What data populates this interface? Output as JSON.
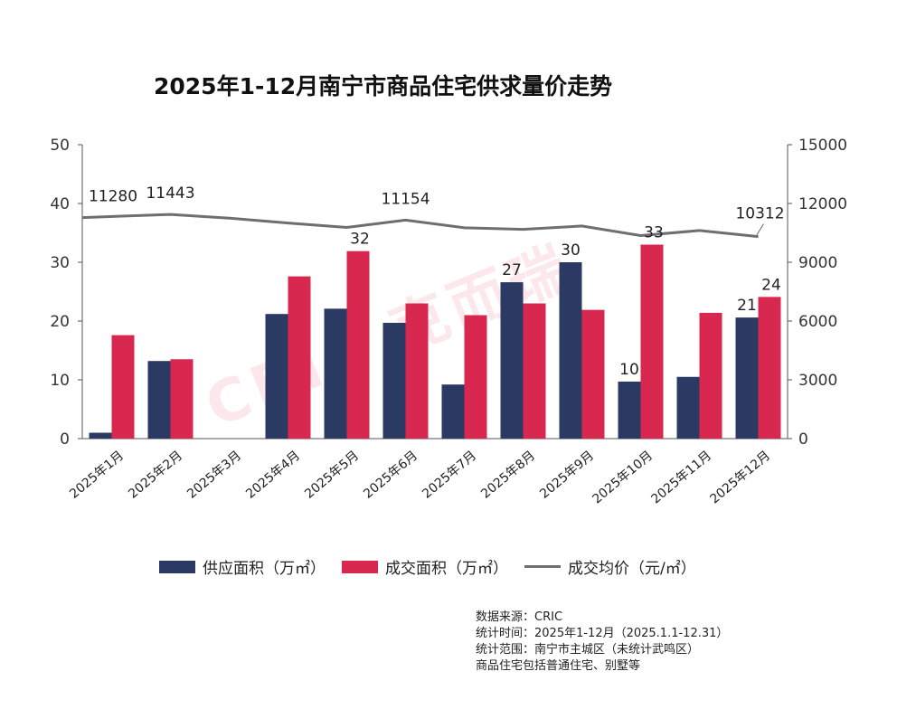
{
  "colors": {
    "supply": "#2a3a63",
    "deal": "#d9284f",
    "price": "#6e6e6e",
    "axis": "#555555",
    "watermark": "#e1112b"
  },
  "watermark": "CRIC 克而瑞",
  "chart_data": {
    "type": "bar",
    "title": "2025年1-12月南宁市商品住宅供求量价走势",
    "categories": [
      "2025年1月",
      "2025年2月",
      "2025年3月",
      "2025年4月",
      "2025年5月",
      "2025年6月",
      "2025年7月",
      "2025年8月",
      "2025年9月",
      "2025年10月",
      "2025年11月",
      "2025年12月"
    ],
    "series": [
      {
        "name": "供应面积（万㎡）",
        "kind": "bar",
        "axis": "left",
        "values": [
          1,
          13.2,
          0,
          21.2,
          22.1,
          19.7,
          9.2,
          26.6,
          30,
          9.7,
          10.5,
          20.6
        ],
        "labels": [
          "",
          "",
          "",
          "",
          "",
          "",
          "",
          "27",
          "30",
          "10",
          "",
          "21"
        ]
      },
      {
        "name": "成交面积（万㎡）",
        "kind": "bar",
        "axis": "left",
        "values": [
          17.6,
          13.5,
          0,
          27.6,
          31.9,
          23,
          21,
          23,
          21.9,
          33,
          21.4,
          24.1
        ],
        "labels": [
          "",
          "",
          "",
          "",
          "32",
          "",
          "",
          "",
          "",
          "33",
          "",
          "24"
        ]
      },
      {
        "name": "成交均价（元/㎡）",
        "kind": "line",
        "axis": "right",
        "values": [
          11280,
          11443,
          11250,
          11000,
          10780,
          11154,
          10760,
          10680,
          10850,
          10360,
          10620,
          10312
        ],
        "labels": [
          "11280",
          "11443",
          "",
          "",
          "",
          "11154",
          "",
          "",
          "",
          "",
          "",
          "10312"
        ]
      }
    ],
    "y_left": {
      "min": 0,
      "max": 50,
      "ticks": [
        "0",
        "10",
        "20",
        "30",
        "40",
        "50"
      ]
    },
    "y_right": {
      "min": 0,
      "max": 15000,
      "ticks": [
        "0",
        "3000",
        "6000",
        "9000",
        "12000",
        "15000"
      ]
    },
    "legend_position": "bottom"
  },
  "footnote": {
    "source": "数据来源：CRIC",
    "period": "统计时间：2025年1-12月（2025.1.1-12.31）",
    "scope": "统计范围：南宁市主城区（未统计武鸣区）",
    "note": "商品住宅包括普通住宅、别墅等"
  }
}
